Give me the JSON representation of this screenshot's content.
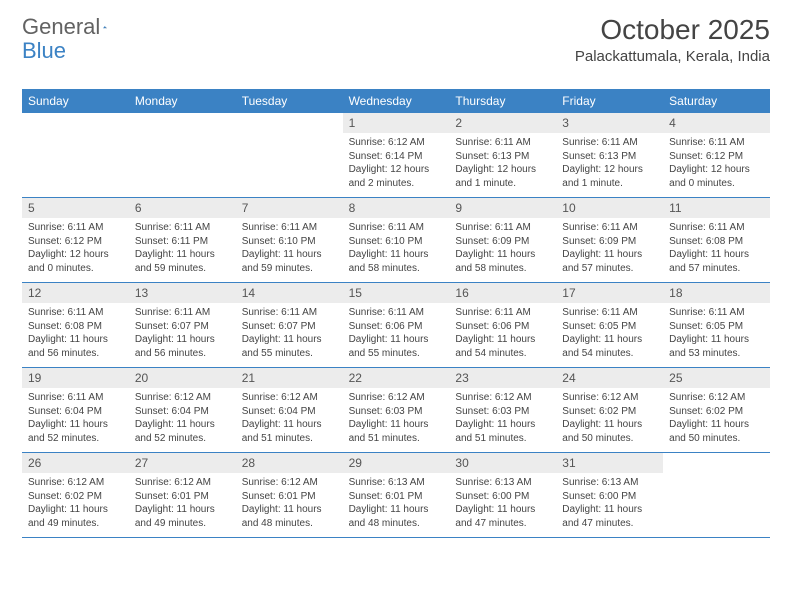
{
  "logo": {
    "text1": "General",
    "text2": "Blue"
  },
  "title": "October 2025",
  "location": "Palackattumala, Kerala, India",
  "colors": {
    "header_bg": "#3b82c4",
    "header_text": "#ffffff",
    "daynum_bg": "#ececec",
    "text": "#444444",
    "border": "#3b82c4"
  },
  "dow": [
    "Sunday",
    "Monday",
    "Tuesday",
    "Wednesday",
    "Thursday",
    "Friday",
    "Saturday"
  ],
  "weeks": [
    [
      {
        "n": "",
        "sr": "",
        "ss": "",
        "dl": ""
      },
      {
        "n": "",
        "sr": "",
        "ss": "",
        "dl": ""
      },
      {
        "n": "",
        "sr": "",
        "ss": "",
        "dl": ""
      },
      {
        "n": "1",
        "sr": "6:12 AM",
        "ss": "6:14 PM",
        "dl": "12 hours and 2 minutes."
      },
      {
        "n": "2",
        "sr": "6:11 AM",
        "ss": "6:13 PM",
        "dl": "12 hours and 1 minute."
      },
      {
        "n": "3",
        "sr": "6:11 AM",
        "ss": "6:13 PM",
        "dl": "12 hours and 1 minute."
      },
      {
        "n": "4",
        "sr": "6:11 AM",
        "ss": "6:12 PM",
        "dl": "12 hours and 0 minutes."
      }
    ],
    [
      {
        "n": "5",
        "sr": "6:11 AM",
        "ss": "6:12 PM",
        "dl": "12 hours and 0 minutes."
      },
      {
        "n": "6",
        "sr": "6:11 AM",
        "ss": "6:11 PM",
        "dl": "11 hours and 59 minutes."
      },
      {
        "n": "7",
        "sr": "6:11 AM",
        "ss": "6:10 PM",
        "dl": "11 hours and 59 minutes."
      },
      {
        "n": "8",
        "sr": "6:11 AM",
        "ss": "6:10 PM",
        "dl": "11 hours and 58 minutes."
      },
      {
        "n": "9",
        "sr": "6:11 AM",
        "ss": "6:09 PM",
        "dl": "11 hours and 58 minutes."
      },
      {
        "n": "10",
        "sr": "6:11 AM",
        "ss": "6:09 PM",
        "dl": "11 hours and 57 minutes."
      },
      {
        "n": "11",
        "sr": "6:11 AM",
        "ss": "6:08 PM",
        "dl": "11 hours and 57 minutes."
      }
    ],
    [
      {
        "n": "12",
        "sr": "6:11 AM",
        "ss": "6:08 PM",
        "dl": "11 hours and 56 minutes."
      },
      {
        "n": "13",
        "sr": "6:11 AM",
        "ss": "6:07 PM",
        "dl": "11 hours and 56 minutes."
      },
      {
        "n": "14",
        "sr": "6:11 AM",
        "ss": "6:07 PM",
        "dl": "11 hours and 55 minutes."
      },
      {
        "n": "15",
        "sr": "6:11 AM",
        "ss": "6:06 PM",
        "dl": "11 hours and 55 minutes."
      },
      {
        "n": "16",
        "sr": "6:11 AM",
        "ss": "6:06 PM",
        "dl": "11 hours and 54 minutes."
      },
      {
        "n": "17",
        "sr": "6:11 AM",
        "ss": "6:05 PM",
        "dl": "11 hours and 54 minutes."
      },
      {
        "n": "18",
        "sr": "6:11 AM",
        "ss": "6:05 PM",
        "dl": "11 hours and 53 minutes."
      }
    ],
    [
      {
        "n": "19",
        "sr": "6:11 AM",
        "ss": "6:04 PM",
        "dl": "11 hours and 52 minutes."
      },
      {
        "n": "20",
        "sr": "6:12 AM",
        "ss": "6:04 PM",
        "dl": "11 hours and 52 minutes."
      },
      {
        "n": "21",
        "sr": "6:12 AM",
        "ss": "6:04 PM",
        "dl": "11 hours and 51 minutes."
      },
      {
        "n": "22",
        "sr": "6:12 AM",
        "ss": "6:03 PM",
        "dl": "11 hours and 51 minutes."
      },
      {
        "n": "23",
        "sr": "6:12 AM",
        "ss": "6:03 PM",
        "dl": "11 hours and 51 minutes."
      },
      {
        "n": "24",
        "sr": "6:12 AM",
        "ss": "6:02 PM",
        "dl": "11 hours and 50 minutes."
      },
      {
        "n": "25",
        "sr": "6:12 AM",
        "ss": "6:02 PM",
        "dl": "11 hours and 50 minutes."
      }
    ],
    [
      {
        "n": "26",
        "sr": "6:12 AM",
        "ss": "6:02 PM",
        "dl": "11 hours and 49 minutes."
      },
      {
        "n": "27",
        "sr": "6:12 AM",
        "ss": "6:01 PM",
        "dl": "11 hours and 49 minutes."
      },
      {
        "n": "28",
        "sr": "6:12 AM",
        "ss": "6:01 PM",
        "dl": "11 hours and 48 minutes."
      },
      {
        "n": "29",
        "sr": "6:13 AM",
        "ss": "6:01 PM",
        "dl": "11 hours and 48 minutes."
      },
      {
        "n": "30",
        "sr": "6:13 AM",
        "ss": "6:00 PM",
        "dl": "11 hours and 47 minutes."
      },
      {
        "n": "31",
        "sr": "6:13 AM",
        "ss": "6:00 PM",
        "dl": "11 hours and 47 minutes."
      },
      {
        "n": "",
        "sr": "",
        "ss": "",
        "dl": ""
      }
    ]
  ],
  "labels": {
    "sunrise": "Sunrise:",
    "sunset": "Sunset:",
    "daylight": "Daylight:"
  }
}
